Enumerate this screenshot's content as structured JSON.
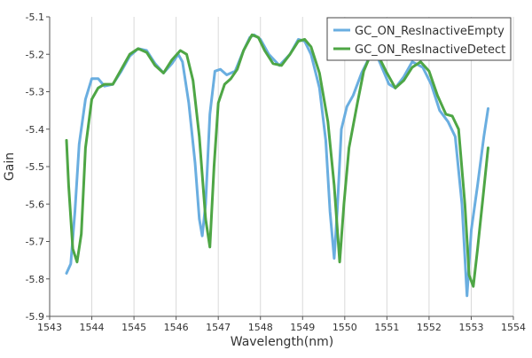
{
  "chart_data": {
    "type": "line",
    "xlabel": "Wavelength(nm)",
    "ylabel": "Gain",
    "xlim": [
      1543,
      1554
    ],
    "ylim": [
      -5.9,
      -5.1
    ],
    "xticks": [
      1543,
      1544,
      1545,
      1546,
      1547,
      1548,
      1549,
      1550,
      1551,
      1552,
      1553,
      1554
    ],
    "yticks": [
      -5.1,
      -5.2,
      -5.3,
      -5.4,
      -5.5,
      -5.6,
      -5.7,
      -5.8,
      -5.9
    ],
    "grid": "vertical",
    "legend_position": "top-right",
    "series": [
      {
        "name": "GC_ON_ResInactiveEmpty",
        "color": "#6aaee0",
        "points": [
          [
            1543.4,
            -5.785
          ],
          [
            1543.5,
            -5.76
          ],
          [
            1543.6,
            -5.62
          ],
          [
            1543.7,
            -5.44
          ],
          [
            1543.85,
            -5.32
          ],
          [
            1544.0,
            -5.265
          ],
          [
            1544.15,
            -5.265
          ],
          [
            1544.3,
            -5.285
          ],
          [
            1544.5,
            -5.28
          ],
          [
            1544.7,
            -5.245
          ],
          [
            1544.9,
            -5.205
          ],
          [
            1545.1,
            -5.185
          ],
          [
            1545.3,
            -5.19
          ],
          [
            1545.5,
            -5.225
          ],
          [
            1545.7,
            -5.25
          ],
          [
            1545.9,
            -5.225
          ],
          [
            1546.05,
            -5.2
          ],
          [
            1546.15,
            -5.22
          ],
          [
            1546.3,
            -5.33
          ],
          [
            1546.45,
            -5.49
          ],
          [
            1546.55,
            -5.64
          ],
          [
            1546.62,
            -5.685
          ],
          [
            1546.7,
            -5.6
          ],
          [
            1546.8,
            -5.36
          ],
          [
            1546.92,
            -5.245
          ],
          [
            1547.05,
            -5.24
          ],
          [
            1547.2,
            -5.255
          ],
          [
            1547.4,
            -5.245
          ],
          [
            1547.6,
            -5.19
          ],
          [
            1547.75,
            -5.155
          ],
          [
            1547.85,
            -5.148
          ],
          [
            1548.0,
            -5.16
          ],
          [
            1548.2,
            -5.2
          ],
          [
            1548.45,
            -5.23
          ],
          [
            1548.7,
            -5.2
          ],
          [
            1548.9,
            -5.16
          ],
          [
            1549.05,
            -5.165
          ],
          [
            1549.2,
            -5.2
          ],
          [
            1549.4,
            -5.29
          ],
          [
            1549.55,
            -5.43
          ],
          [
            1549.65,
            -5.62
          ],
          [
            1549.75,
            -5.745
          ],
          [
            1549.82,
            -5.62
          ],
          [
            1549.92,
            -5.4
          ],
          [
            1550.05,
            -5.34
          ],
          [
            1550.2,
            -5.31
          ],
          [
            1550.4,
            -5.25
          ],
          [
            1550.6,
            -5.205
          ],
          [
            1550.75,
            -5.2
          ],
          [
            1550.9,
            -5.24
          ],
          [
            1551.05,
            -5.28
          ],
          [
            1551.2,
            -5.29
          ],
          [
            1551.4,
            -5.26
          ],
          [
            1551.6,
            -5.22
          ],
          [
            1551.85,
            -5.235
          ],
          [
            1552.05,
            -5.28
          ],
          [
            1552.25,
            -5.35
          ],
          [
            1552.45,
            -5.38
          ],
          [
            1552.62,
            -5.42
          ],
          [
            1552.78,
            -5.6
          ],
          [
            1552.9,
            -5.845
          ],
          [
            1553.0,
            -5.67
          ],
          [
            1553.15,
            -5.55
          ],
          [
            1553.3,
            -5.42
          ],
          [
            1553.4,
            -5.345
          ]
        ]
      },
      {
        "name": "GC_ON_ResInactiveDetect",
        "color": "#4ea645",
        "points": [
          [
            1543.4,
            -5.43
          ],
          [
            1543.45,
            -5.55
          ],
          [
            1543.55,
            -5.72
          ],
          [
            1543.65,
            -5.755
          ],
          [
            1543.75,
            -5.68
          ],
          [
            1543.85,
            -5.45
          ],
          [
            1544.0,
            -5.32
          ],
          [
            1544.15,
            -5.29
          ],
          [
            1544.3,
            -5.28
          ],
          [
            1544.5,
            -5.28
          ],
          [
            1544.7,
            -5.24
          ],
          [
            1544.9,
            -5.2
          ],
          [
            1545.1,
            -5.185
          ],
          [
            1545.3,
            -5.195
          ],
          [
            1545.5,
            -5.23
          ],
          [
            1545.7,
            -5.25
          ],
          [
            1545.9,
            -5.215
          ],
          [
            1546.1,
            -5.19
          ],
          [
            1546.25,
            -5.2
          ],
          [
            1546.4,
            -5.27
          ],
          [
            1546.55,
            -5.42
          ],
          [
            1546.7,
            -5.64
          ],
          [
            1546.8,
            -5.715
          ],
          [
            1546.9,
            -5.5
          ],
          [
            1547.0,
            -5.33
          ],
          [
            1547.15,
            -5.28
          ],
          [
            1547.3,
            -5.265
          ],
          [
            1547.45,
            -5.24
          ],
          [
            1547.6,
            -5.19
          ],
          [
            1547.8,
            -5.148
          ],
          [
            1547.95,
            -5.155
          ],
          [
            1548.1,
            -5.19
          ],
          [
            1548.3,
            -5.225
          ],
          [
            1548.5,
            -5.23
          ],
          [
            1548.7,
            -5.2
          ],
          [
            1548.9,
            -5.165
          ],
          [
            1549.05,
            -5.16
          ],
          [
            1549.2,
            -5.18
          ],
          [
            1549.4,
            -5.25
          ],
          [
            1549.6,
            -5.38
          ],
          [
            1549.75,
            -5.55
          ],
          [
            1549.88,
            -5.755
          ],
          [
            1549.98,
            -5.6
          ],
          [
            1550.1,
            -5.45
          ],
          [
            1550.3,
            -5.33
          ],
          [
            1550.45,
            -5.245
          ],
          [
            1550.6,
            -5.205
          ],
          [
            1550.8,
            -5.205
          ],
          [
            1551.0,
            -5.25
          ],
          [
            1551.2,
            -5.29
          ],
          [
            1551.4,
            -5.27
          ],
          [
            1551.6,
            -5.235
          ],
          [
            1551.8,
            -5.22
          ],
          [
            1552.0,
            -5.245
          ],
          [
            1552.2,
            -5.31
          ],
          [
            1552.4,
            -5.36
          ],
          [
            1552.55,
            -5.365
          ],
          [
            1552.7,
            -5.4
          ],
          [
            1552.85,
            -5.6
          ],
          [
            1552.95,
            -5.79
          ],
          [
            1553.05,
            -5.82
          ],
          [
            1553.15,
            -5.72
          ],
          [
            1553.3,
            -5.56
          ],
          [
            1553.4,
            -5.45
          ]
        ]
      }
    ]
  }
}
